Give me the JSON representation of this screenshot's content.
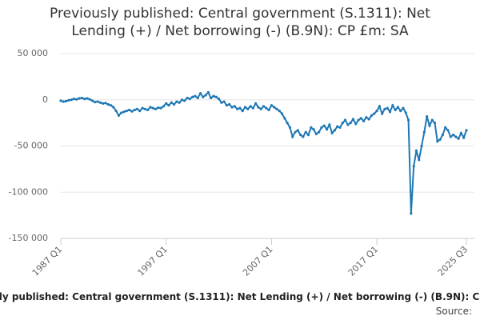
{
  "chart_data": {
    "type": "line",
    "title": "Previously published: Central government (S.1311): Net Lending (+) / Net borrowing (-) (B.9N): CP £m: SA",
    "source_label": "Source:",
    "categories": [
      "1987 Q1",
      null,
      null,
      null,
      null,
      null,
      null,
      null,
      null,
      null,
      null,
      null,
      null,
      null,
      null,
      null,
      null,
      null,
      null,
      null,
      null,
      null,
      null,
      null,
      null,
      null,
      null,
      null,
      null,
      null,
      null,
      null,
      null,
      null,
      null,
      null,
      null,
      null,
      null,
      null,
      "1997 Q1",
      null,
      null,
      null,
      null,
      null,
      null,
      null,
      null,
      null,
      null,
      null,
      null,
      null,
      null,
      null,
      null,
      null,
      null,
      null,
      null,
      null,
      null,
      null,
      null,
      null,
      null,
      null,
      null,
      null,
      null,
      null,
      null,
      null,
      null,
      null,
      null,
      null,
      null,
      null,
      "2007 Q1",
      null,
      null,
      null,
      null,
      null,
      null,
      null,
      null,
      null,
      null,
      null,
      null,
      null,
      null,
      null,
      null,
      null,
      null,
      null,
      null,
      null,
      null,
      null,
      null,
      null,
      null,
      null,
      null,
      null,
      null,
      null,
      null,
      null,
      null,
      null,
      null,
      null,
      null,
      null,
      "2017 Q1",
      null,
      null,
      null,
      null,
      null,
      null,
      null,
      null,
      null,
      null,
      null,
      null,
      null,
      null,
      null,
      null,
      null,
      null,
      null,
      null,
      null,
      null,
      null,
      null,
      null,
      null,
      null,
      null,
      null,
      null,
      null,
      null,
      null,
      "2025 Q3"
    ],
    "series": [
      {
        "name": "Previously published: Central government (S.1311): Net Lending (+) / Net borrowing (-) (B.9N): CP £m: SA",
        "color": "#1f78b4",
        "values": [
          -1000,
          -2000,
          -1500,
          -500,
          0,
          1000,
          500,
          1500,
          2000,
          1000,
          1500,
          500,
          -1000,
          -2500,
          -2000,
          -3000,
          -4000,
          -3500,
          -5000,
          -6000,
          -8000,
          -12000,
          -17000,
          -14000,
          -13000,
          -12000,
          -11000,
          -12500,
          -11000,
          -10000,
          -12000,
          -9000,
          -10000,
          -11000,
          -8000,
          -9000,
          -10000,
          -8500,
          -9000,
          -7000,
          -4000,
          -6000,
          -3000,
          -5000,
          -2000,
          -3000,
          0,
          -1000,
          2000,
          1000,
          3000,
          4000,
          2000,
          7000,
          3000,
          5000,
          8000,
          2000,
          4000,
          3000,
          1000,
          -3000,
          -2000,
          -6000,
          -5000,
          -8000,
          -7000,
          -10000,
          -9000,
          -12000,
          -8000,
          -10000,
          -7000,
          -9000,
          -4000,
          -8000,
          -10000,
          -7000,
          -9000,
          -11000,
          -6000,
          -8000,
          -10000,
          -12000,
          -15000,
          -20000,
          -25000,
          -30000,
          -40000,
          -35000,
          -33000,
          -38000,
          -40000,
          -35000,
          -38000,
          -30000,
          -32000,
          -37000,
          -35000,
          -30000,
          -28000,
          -32000,
          -27000,
          -36000,
          -33000,
          -29000,
          -30000,
          -25000,
          -22000,
          -27000,
          -25000,
          -21000,
          -26000,
          -22000,
          -20000,
          -23000,
          -19000,
          -21000,
          -17000,
          -15000,
          -12000,
          -7000,
          -15000,
          -10000,
          -9000,
          -13000,
          -6000,
          -11000,
          -8000,
          -12000,
          -9000,
          -14000,
          -22000,
          -123000,
          -72000,
          -55000,
          -65000,
          -50000,
          -35000,
          -18000,
          -28000,
          -22000,
          -25000,
          -45000,
          -43000,
          -38000,
          -30000,
          -33000,
          -40000,
          -38000,
          -40000,
          -42000,
          -36000,
          -41000,
          -33000
        ]
      }
    ],
    "ylim": [
      -150000,
      50000
    ],
    "yticks": [
      {
        "value": 50000,
        "label": "50 000"
      },
      0,
      {
        "value": -50000,
        "label": "-50 000"
      },
      {
        "value": -100000,
        "label": "-100 000"
      },
      {
        "value": -150000,
        "label": "-150 000"
      }
    ],
    "grid": true
  }
}
